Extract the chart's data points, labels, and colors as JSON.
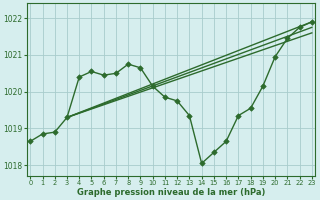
{
  "x": [
    0,
    1,
    2,
    3,
    4,
    5,
    6,
    7,
    8,
    9,
    10,
    11,
    12,
    13,
    14,
    15,
    16,
    17,
    18,
    19,
    20,
    21,
    22,
    23
  ],
  "y_main": [
    1018.65,
    1018.85,
    1018.9,
    1019.3,
    1020.4,
    1020.55,
    1020.45,
    1020.5,
    1020.75,
    1020.65,
    1020.15,
    1019.85,
    1019.75,
    1019.35,
    1018.05,
    1018.35,
    1018.65,
    1019.35,
    1019.55,
    1020.15,
    1020.95,
    1021.45,
    1021.75,
    1021.9
  ],
  "trend_lines": [
    {
      "x": [
        3,
        23
      ],
      "y": [
        1019.3,
        1021.9
      ]
    },
    {
      "x": [
        3,
        23
      ],
      "y": [
        1019.3,
        1021.6
      ]
    },
    {
      "x": [
        3,
        23
      ],
      "y": [
        1019.3,
        1021.75
      ]
    }
  ],
  "ylim": [
    1017.7,
    1022.4
  ],
  "yticks": [
    1018,
    1019,
    1020,
    1021,
    1022
  ],
  "xlim": [
    -0.3,
    23.3
  ],
  "xticks": [
    0,
    1,
    2,
    3,
    4,
    5,
    6,
    7,
    8,
    9,
    10,
    11,
    12,
    13,
    14,
    15,
    16,
    17,
    18,
    19,
    20,
    21,
    22,
    23
  ],
  "xlabel": "Graphe pression niveau de la mer (hPa)",
  "line_color": "#2d6b2d",
  "bg_color": "#d6eeee",
  "grid_color": "#a8cccc",
  "markersize": 2.8,
  "linewidth": 1.0
}
